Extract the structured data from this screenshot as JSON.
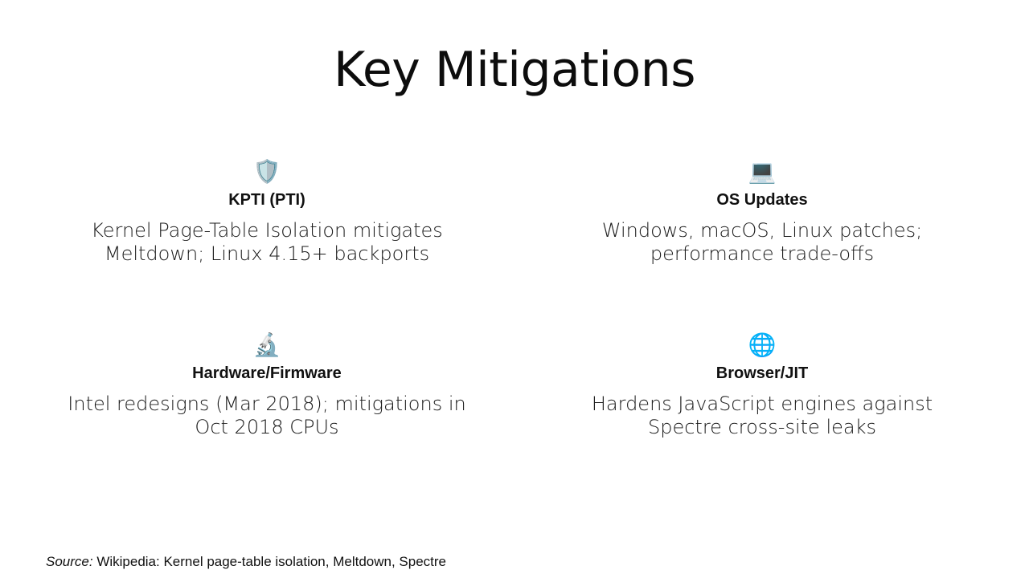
{
  "slide": {
    "title": "Key Mitigations",
    "cards": [
      {
        "icon": "🛡️",
        "icon_name": "shield-icon",
        "heading": "KPTI (PTI)",
        "text": "Kernel Page-Table Isolation mitigates Meltdown; Linux 4.15+ backports"
      },
      {
        "icon": "💻",
        "icon_name": "laptop-icon",
        "heading": "OS Updates",
        "text": "Windows, macOS, Linux patches; performance trade-offs"
      },
      {
        "icon": "🔬",
        "icon_name": "microscope-icon",
        "heading": "Hardware/Firmware",
        "text": "Intel redesigns (Mar 2018); mitigations in Oct 2018 CPUs"
      },
      {
        "icon": "🌐",
        "icon_name": "globe-icon",
        "heading": "Browser/JIT",
        "text": "Hardens JavaScript engines against Spectre cross-site leaks"
      }
    ],
    "source_label": "Source:",
    "source_text": " Wikipedia: Kernel page-table isolation, Meltdown, Spectre"
  }
}
